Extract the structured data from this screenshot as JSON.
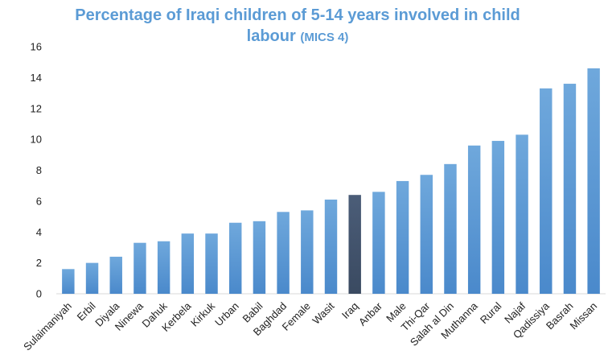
{
  "chart_data": {
    "type": "bar",
    "title": "Percentage of Iraqi children of 5-14 years involved in child labour",
    "title_suffix": "(MICS 4)",
    "xlabel": "",
    "ylabel": "",
    "ylim": [
      0,
      16
    ],
    "yticks": [
      "0",
      "2",
      "4",
      "6",
      "8",
      "10",
      "12",
      "14",
      "16"
    ],
    "grid": false,
    "legend": "none",
    "categories": [
      "Sulaimaniyah",
      "Erbil",
      "Diyala",
      "Ninewa",
      "Dahuk",
      "Kerbela",
      "Kirkuk",
      "Urban",
      "Babil",
      "Baghdad",
      "Female",
      "Wasit",
      "Iraq",
      "Anbar",
      "Male",
      "Thi-Qar",
      "Salah al Din",
      "Muthanna",
      "Rural",
      "Najaf",
      "Qadissiya",
      "Basrah",
      "Missan"
    ],
    "values": [
      1.6,
      2.0,
      2.4,
      3.3,
      3.4,
      3.9,
      3.9,
      4.6,
      4.7,
      5.3,
      5.4,
      6.1,
      6.4,
      6.6,
      7.3,
      7.7,
      8.4,
      9.6,
      9.9,
      10.3,
      13.3,
      13.6,
      14.6
    ],
    "highlight_category": "Iraq",
    "colors": {
      "bar": "#5b9bd5",
      "bar_highlight": "#44546a",
      "title": "#5b9bd5"
    }
  }
}
